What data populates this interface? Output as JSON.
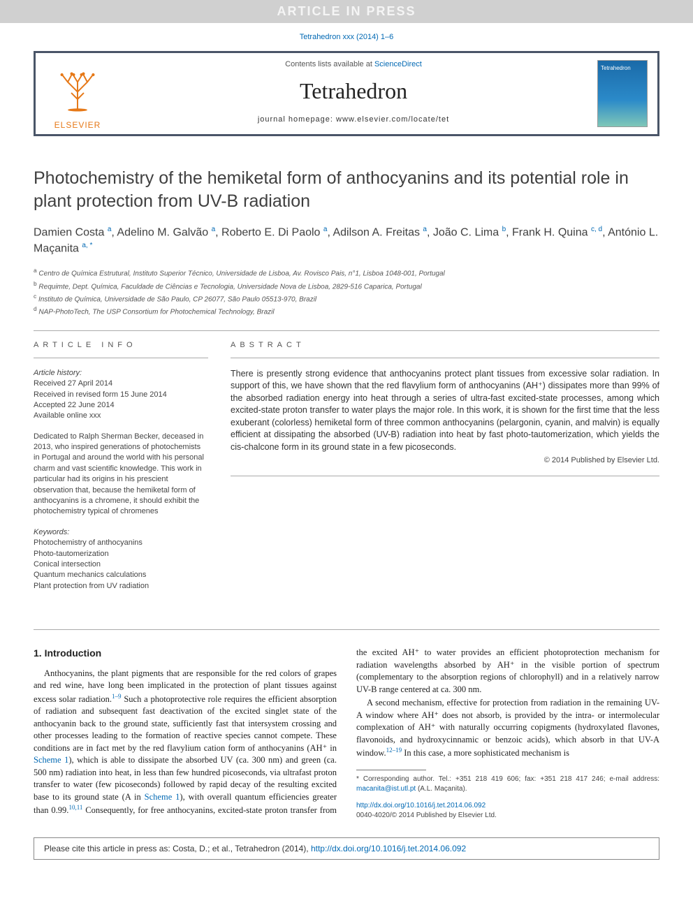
{
  "watermark": "ARTICLE IN PRESS",
  "citation_top": "Tetrahedron xxx (2014) 1–6",
  "masthead": {
    "contents_prefix": "Contents lists available at ",
    "contents_link": "ScienceDirect",
    "journal": "Tetrahedron",
    "homepage": "journal homepage: www.elsevier.com/locate/tet",
    "publisher_label": "ELSEVIER",
    "cover_title": "Tetrahedron"
  },
  "title": "Photochemistry of the hemiketal form of anthocyanins and its potential role in plant protection from UV-B radiation",
  "authors_html": "Damien Costa <sup>a</sup>, Adelino M. Galvão <sup>a</sup>, Roberto E. Di Paolo <sup>a</sup>, Adilson A. Freitas <sup>a</sup>, João C. Lima <sup>b</sup>, Frank H. Quina <sup>c, d</sup>, António L. Maçanita <sup>a, *</sup>",
  "affiliations": [
    {
      "sup": "a",
      "text": "Centro de Química Estrutural, Instituto Superior Técnico, Universidade de Lisboa, Av. Rovisco Pais, n°1, Lisboa 1048-001, Portugal"
    },
    {
      "sup": "b",
      "text": "Requimte, Dept. Química, Faculdade de Ciências e Tecnologia, Universidade Nova de Lisboa, 2829-516 Caparica, Portugal"
    },
    {
      "sup": "c",
      "text": "Instituto de Química, Universidade de São Paulo, CP 26077, São Paulo 05513-970, Brazil"
    },
    {
      "sup": "d",
      "text": "NAP-PhotoTech, The USP Consortium for Photochemical Technology, Brazil"
    }
  ],
  "info": {
    "head": "ARTICLE INFO",
    "history_label": "Article history:",
    "history": [
      "Received 27 April 2014",
      "Received in revised form 15 June 2014",
      "Accepted 22 June 2014",
      "Available online xxx"
    ],
    "dedication": "Dedicated to Ralph Sherman Becker, deceased in 2013, who inspired generations of photochemists in Portugal and around the world with his personal charm and vast scientific knowledge. This work in particular had its origins in his prescient observation that, because the hemiketal form of anthocyanins is a chromene, it should exhibit the photochemistry typical of chromenes",
    "keywords_label": "Keywords:",
    "keywords": [
      "Photochemistry of anthocyanins",
      "Photo-tautomerization",
      "Conical intersection",
      "Quantum mechanics calculations",
      "Plant protection from UV radiation"
    ]
  },
  "abstract": {
    "head": "ABSTRACT",
    "text": "There is presently strong evidence that anthocyanins protect plant tissues from excessive solar radiation. In support of this, we have shown that the red flavylium form of anthocyanins (AH⁺) dissipates more than 99% of the absorbed radiation energy into heat through a series of ultra-fast excited-state processes, among which excited-state proton transfer to water plays the major role. In this work, it is shown for the first time that the less exuberant (colorless) hemiketal form of three common anthocyanins (pelargonin, cyanin, and malvin) is equally efficient at dissipating the absorbed (UV-B) radiation into heat by fast photo-tautomerization, which yields the cis-chalcone form in its ground state in a few picoseconds.",
    "copyright": "© 2014 Published by Elsevier Ltd."
  },
  "body": {
    "section_heading": "1. Introduction",
    "p1_a": "Anthocyanins, the plant pigments that are responsible for the red colors of grapes and red wine, have long been implicated in the protection of plant tissues against excess solar radiation.",
    "p1_ref1": "1–9",
    "p1_b": " Such a photoprotective role requires the efficient absorption of radiation and subsequent fast deactivation of the excited singlet state of the anthocyanin back to the ground state, sufficiently fast that intersystem crossing and other processes leading to the formation of reactive species cannot compete. These conditions are in fact met by the red flavylium cation form of anthocyanins (AH⁺ in ",
    "p1_link1": "Scheme 1",
    "p1_c": "), which is able to dissipate the absorbed UV (ca. 300 nm) and green (ca. 500 nm) radiation into heat, in less than few hundred picoseconds, via ultrafast proton transfer to water (few picoseconds) followed by rapid decay of the resulting excited base to its ground state (A in ",
    "p1_link2": "Scheme 1",
    "p1_d": "), with overall quantum efficiencies greater than 0.99.",
    "p1_ref2": "10,11",
    "p1_e": " Consequently, for free anthocyanins, excited-state proton transfer from the excited AH⁺ to water provides an efficient photoprotection mechanism for radiation wavelengths absorbed by AH⁺ in the visible portion of spectrum (complementary to the absorption regions of chlorophyll) and in a relatively narrow UV-B range centered at ca. 300 nm.",
    "p2_a": "A second mechanism, effective for protection from radiation in the remaining UV-A window where AH⁺ does not absorb, is provided by the intra- or intermolecular complexation of AH⁺ with naturally occurring copigments (hydroxylated flavones, flavonoids, and hydroxycinnamic or benzoic acids), which absorb in that UV-A window.",
    "p2_ref1": "12–19",
    "p2_b": " In this case, a more sophisticated mechanism is"
  },
  "footnote": {
    "corresponding": "* Corresponding author. Tel.: +351 218 419 606; fax: +351 218 417 246; e-mail address: ",
    "email": "macanita@ist.utl.pt",
    "email_after": " (A.L. Maçanita)."
  },
  "doi": {
    "link": "http://dx.doi.org/10.1016/j.tet.2014.06.092",
    "issn": "0040-4020/© 2014 Published by Elsevier Ltd."
  },
  "citation_box": {
    "prefix": "Please cite this article in press as: Costa, D.; et al., Tetrahedron (2014), ",
    "link": "http://dx.doi.org/10.1016/j.tet.2014.06.092"
  },
  "colors": {
    "link": "#0068b3",
    "border": "#4a5568",
    "orange": "#e67817",
    "watermark_bg": "#d0d0d0"
  }
}
